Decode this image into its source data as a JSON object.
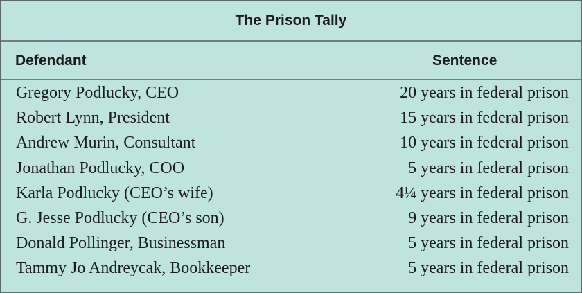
{
  "table": {
    "title": "The Prison Tally",
    "headers": {
      "defendant": "Defendant",
      "sentence": "Sentence"
    },
    "rows": [
      {
        "defendant": "Gregory Podlucky, CEO",
        "sentence": "20 years in federal prison"
      },
      {
        "defendant": "Robert Lynn, President",
        "sentence": "15 years in federal prison"
      },
      {
        "defendant": "Andrew Murin, Consultant",
        "sentence": "10 years in federal prison"
      },
      {
        "defendant": "Jonathan Podlucky, COO",
        "sentence": "5 years in federal prison"
      },
      {
        "defendant": "Karla Podlucky (CEO’s wife)",
        "sentence": "4¼ years in federal prison"
      },
      {
        "defendant": "G. Jesse Podlucky (CEO’s son)",
        "sentence": "9 years in federal prison"
      },
      {
        "defendant": "Donald Pollinger, Businessman",
        "sentence": "5 years in federal prison"
      },
      {
        "defendant": "Tammy Jo Andreycak, Bookkeeper",
        "sentence": "5 years in federal prison"
      }
    ]
  },
  "colors": {
    "background": "#bfe4e0",
    "border": "#5b6b6c",
    "text": "#1c1c1c"
  }
}
